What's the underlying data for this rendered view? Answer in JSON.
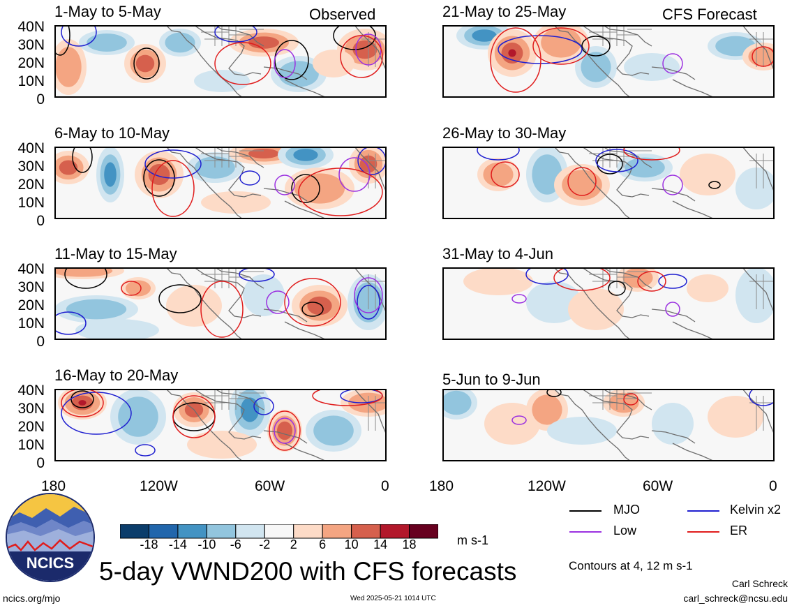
{
  "panels": [
    {
      "title": "1-May to 5-May",
      "tag": "Observed"
    },
    {
      "title": "6-May to 10-May",
      "tag": ""
    },
    {
      "title": "11-May to 15-May",
      "tag": ""
    },
    {
      "title": "16-May to 20-May",
      "tag": ""
    },
    {
      "title": "21-May to 25-May",
      "tag": "CFS Forecast"
    },
    {
      "title": "26-May to 30-May",
      "tag": ""
    },
    {
      "title": "31-May to 4-Jun",
      "tag": ""
    },
    {
      "title": "5-Jun to 9-Jun",
      "tag": ""
    }
  ],
  "lat_ticks": [
    "40N",
    "30N",
    "20N",
    "10N",
    "0"
  ],
  "lon_ticks": [
    "180",
    "120W",
    "60W",
    "0"
  ],
  "colorbar": {
    "ticks": [
      "-18",
      "-14",
      "-10",
      "-6",
      "-2",
      "2",
      "6",
      "10",
      "14",
      "18"
    ],
    "units": "m s-1",
    "colors": [
      "#0b3d6b",
      "#2166ac",
      "#4393c3",
      "#92c5de",
      "#d1e5f0",
      "#f7f7f7",
      "#fddbc7",
      "#f4a582",
      "#d6604d",
      "#b2182b",
      "#67001f"
    ]
  },
  "legend": {
    "items": [
      {
        "label": "MJO",
        "color": "#000000"
      },
      {
        "label": "Kelvin x2",
        "color": "#1f1fd0"
      },
      {
        "label": "Low",
        "color": "#9b30e0"
      },
      {
        "label": "ER",
        "color": "#e01c1c"
      }
    ],
    "note": "Contours at 4, 12 m s-1"
  },
  "logo_text": "NCICS",
  "main_title": "5-day VWND200 with CFS forecasts",
  "footer": {
    "url": "ncics.org/mjo",
    "timestamp": "Wed 2025-05-21 1014 UTC",
    "author": "Carl Schreck",
    "email": "carl_schreck@ncsu.edu"
  }
}
